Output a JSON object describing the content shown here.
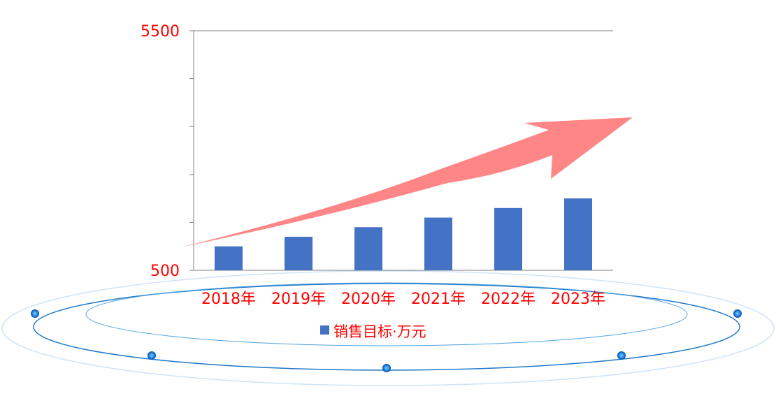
{
  "chart_data": {
    "type": "bar",
    "categories": [
      "2018年",
      "2019年",
      "2020年",
      "2021年",
      "2022年",
      "2023年"
    ],
    "series": [
      {
        "name": "销售目标·万元",
        "values": [
          1000,
          1200,
          1400,
          1600,
          1800,
          2000
        ]
      }
    ],
    "ylim": [
      500,
      5500
    ],
    "y_tick_labels": [
      "5500",
      "500"
    ],
    "legend": "bottom",
    "grid": false
  },
  "colors": {
    "bar": "#4472C4",
    "label": "#FF0000",
    "arrow": "#FF7F7F",
    "axis": "#7F7F7F",
    "ring": "#1E88E5"
  },
  "decorations": {
    "arrow": "trend-arrow",
    "platform": "concentric-rings"
  }
}
